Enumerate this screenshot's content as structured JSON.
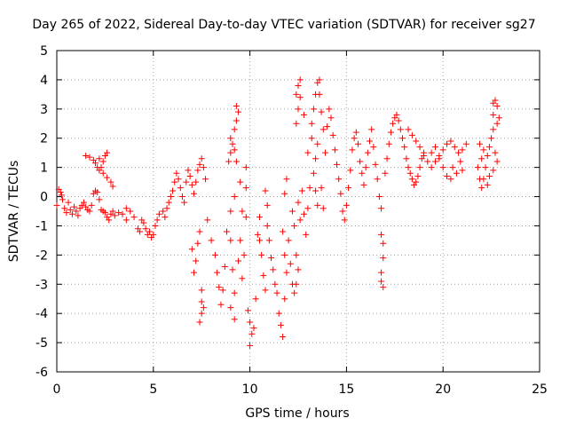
{
  "chart_data": {
    "type": "scatter",
    "title": "Day 265 of 2022, Sidereal Day-to-day VTEC variation (SDTVAR) for receiver sg27",
    "xlabel": "GPS time / hours",
    "ylabel": "SDTVAR / TECUs",
    "xlim": [
      0,
      25
    ],
    "ylim": [
      -6,
      5
    ],
    "xticks": [
      "0",
      "5",
      "10",
      "15",
      "20",
      "25"
    ],
    "yticks": [
      "5",
      "4",
      "3",
      "2",
      "1",
      "0",
      "-1",
      "-2",
      "-3",
      "-4",
      "-5",
      "-6"
    ],
    "marker": "plus",
    "color": "#ff0000",
    "grid": true,
    "series": [
      {
        "name": "SDTVAR",
        "points": [
          [
            0.0,
            -0.3
          ],
          [
            0.1,
            0.25
          ],
          [
            0.2,
            0.15
          ],
          [
            0.25,
            0.05
          ],
          [
            0.3,
            -0.1
          ],
          [
            0.4,
            -0.4
          ],
          [
            0.5,
            -0.55
          ],
          [
            0.6,
            -0.2
          ],
          [
            0.7,
            -0.45
          ],
          [
            0.8,
            -0.6
          ],
          [
            0.9,
            -0.35
          ],
          [
            1.0,
            -0.5
          ],
          [
            1.1,
            -0.65
          ],
          [
            1.2,
            -0.4
          ],
          [
            1.3,
            -0.3
          ],
          [
            1.4,
            -0.2
          ],
          [
            1.5,
            -0.35
          ],
          [
            1.6,
            -0.45
          ],
          [
            1.7,
            -0.5
          ],
          [
            1.8,
            -0.3
          ],
          [
            1.9,
            0.1
          ],
          [
            2.0,
            0.2
          ],
          [
            2.1,
            0.15
          ],
          [
            2.2,
            -0.1
          ],
          [
            2.3,
            -0.45
          ],
          [
            2.4,
            -0.5
          ],
          [
            2.5,
            -0.55
          ],
          [
            2.6,
            -0.7
          ],
          [
            2.7,
            -0.8
          ],
          [
            2.8,
            -0.6
          ],
          [
            2.9,
            -0.5
          ],
          [
            3.0,
            -0.65
          ],
          [
            3.2,
            -0.55
          ],
          [
            3.4,
            -0.6
          ],
          [
            3.6,
            -0.8
          ],
          [
            1.5,
            1.4
          ],
          [
            1.7,
            1.35
          ],
          [
            1.9,
            1.25
          ],
          [
            2.0,
            1.15
          ],
          [
            2.1,
            1.0
          ],
          [
            2.2,
            0.9
          ],
          [
            2.3,
            1.0
          ],
          [
            2.4,
            1.2
          ],
          [
            2.5,
            1.4
          ],
          [
            2.6,
            1.5
          ],
          [
            2.2,
            1.3
          ],
          [
            2.4,
            0.8
          ],
          [
            2.6,
            0.65
          ],
          [
            2.8,
            0.5
          ],
          [
            2.9,
            0.35
          ],
          [
            3.6,
            -0.4
          ],
          [
            3.8,
            -0.5
          ],
          [
            4.0,
            -0.7
          ],
          [
            4.2,
            -1.1
          ],
          [
            4.3,
            -1.2
          ],
          [
            4.4,
            -0.8
          ],
          [
            4.5,
            -0.9
          ],
          [
            4.6,
            -1.1
          ],
          [
            4.7,
            -1.3
          ],
          [
            4.8,
            -1.2
          ],
          [
            4.9,
            -1.4
          ],
          [
            5.0,
            -1.3
          ],
          [
            5.1,
            -1.0
          ],
          [
            5.2,
            -0.8
          ],
          [
            5.3,
            -0.6
          ],
          [
            5.5,
            -0.5
          ],
          [
            5.6,
            -0.7
          ],
          [
            5.7,
            -0.4
          ],
          [
            5.8,
            -0.2
          ],
          [
            5.9,
            0.0
          ],
          [
            6.0,
            0.2
          ],
          [
            6.1,
            0.5
          ],
          [
            6.2,
            0.8
          ],
          [
            6.3,
            0.6
          ],
          [
            6.4,
            0.3
          ],
          [
            6.5,
            0.0
          ],
          [
            6.6,
            -0.2
          ],
          [
            6.7,
            0.5
          ],
          [
            6.8,
            0.9
          ],
          [
            6.9,
            0.7
          ],
          [
            7.0,
            0.4
          ],
          [
            7.1,
            0.1
          ],
          [
            7.2,
            0.5
          ],
          [
            7.3,
            0.9
          ],
          [
            7.4,
            1.1
          ],
          [
            7.5,
            1.3
          ],
          [
            7.6,
            1.0
          ],
          [
            7.7,
            0.6
          ],
          [
            7.4,
            -1.2
          ],
          [
            7.3,
            -1.6
          ],
          [
            7.2,
            -2.2
          ],
          [
            7.1,
            -2.6
          ],
          [
            7.0,
            -1.8
          ],
          [
            7.5,
            -3.2
          ],
          [
            7.5,
            -3.6
          ],
          [
            7.5,
            -4.0
          ],
          [
            7.4,
            -4.3
          ],
          [
            7.6,
            -3.8
          ],
          [
            7.8,
            -0.8
          ],
          [
            8.0,
            -1.5
          ],
          [
            8.2,
            -2.0
          ],
          [
            8.3,
            -2.6
          ],
          [
            8.4,
            -3.1
          ],
          [
            8.5,
            -3.7
          ],
          [
            8.6,
            -3.2
          ],
          [
            8.7,
            -2.4
          ],
          [
            8.8,
            -1.2
          ],
          [
            9.0,
            -0.5
          ],
          [
            9.2,
            0.0
          ],
          [
            9.0,
            -1.5
          ],
          [
            9.1,
            -2.5
          ],
          [
            9.2,
            -3.3
          ],
          [
            9.0,
            -3.8
          ],
          [
            9.2,
            -4.2
          ],
          [
            8.9,
            1.2
          ],
          [
            9.0,
            1.5
          ],
          [
            9.1,
            1.8
          ],
          [
            9.2,
            1.6
          ],
          [
            9.3,
            1.2
          ],
          [
            9.0,
            2.0
          ],
          [
            9.2,
            2.3
          ],
          [
            9.3,
            2.6
          ],
          [
            9.4,
            2.9
          ],
          [
            9.3,
            3.1
          ],
          [
            9.5,
            0.5
          ],
          [
            9.6,
            -0.5
          ],
          [
            9.5,
            -1.5
          ],
          [
            9.4,
            -2.2
          ],
          [
            9.6,
            -2.8
          ],
          [
            9.7,
            -2.0
          ],
          [
            9.8,
            -0.7
          ],
          [
            9.8,
            0.3
          ],
          [
            9.8,
            1.0
          ],
          [
            9.9,
            -3.9
          ],
          [
            10.0,
            -4.3
          ],
          [
            10.1,
            -4.7
          ],
          [
            10.0,
            -5.1
          ],
          [
            10.2,
            -4.5
          ],
          [
            10.3,
            -3.5
          ],
          [
            10.4,
            -1.3
          ],
          [
            10.5,
            -0.7
          ],
          [
            10.5,
            -1.5
          ],
          [
            10.6,
            -2.0
          ],
          [
            10.7,
            -2.7
          ],
          [
            10.8,
            -3.2
          ],
          [
            10.9,
            -1.0
          ],
          [
            10.9,
            -0.3
          ],
          [
            10.8,
            0.2
          ],
          [
            11.0,
            -1.5
          ],
          [
            11.1,
            -2.1
          ],
          [
            11.2,
            -2.5
          ],
          [
            11.3,
            -3.0
          ],
          [
            11.4,
            -3.3
          ],
          [
            11.5,
            -4.0
          ],
          [
            11.6,
            -4.4
          ],
          [
            11.7,
            -4.8
          ],
          [
            11.8,
            -3.5
          ],
          [
            11.9,
            -2.6
          ],
          [
            11.8,
            -2.0
          ],
          [
            11.7,
            -1.2
          ],
          [
            11.8,
            0.1
          ],
          [
            11.9,
            0.6
          ],
          [
            12.0,
            -1.5
          ],
          [
            12.1,
            -2.3
          ],
          [
            12.2,
            -3.0
          ],
          [
            12.3,
            -3.3
          ],
          [
            12.4,
            -3.0
          ],
          [
            12.5,
            -2.5
          ],
          [
            12.4,
            -2.0
          ],
          [
            12.3,
            -1.0
          ],
          [
            12.2,
            -0.5
          ],
          [
            12.5,
            -0.2
          ],
          [
            12.6,
            -0.8
          ],
          [
            12.7,
            0.2
          ],
          [
            12.8,
            -0.6
          ],
          [
            12.9,
            -1.3
          ],
          [
            13.0,
            -0.4
          ],
          [
            13.1,
            0.3
          ],
          [
            12.4,
            2.5
          ],
          [
            12.5,
            3.0
          ],
          [
            12.4,
            3.5
          ],
          [
            12.5,
            3.8
          ],
          [
            12.6,
            4.0
          ],
          [
            12.6,
            3.4
          ],
          [
            12.8,
            2.8
          ],
          [
            13.0,
            1.5
          ],
          [
            13.2,
            2.0
          ],
          [
            13.2,
            2.5
          ],
          [
            13.3,
            3.0
          ],
          [
            13.4,
            3.5
          ],
          [
            13.5,
            3.9
          ],
          [
            13.6,
            4.0
          ],
          [
            13.6,
            3.5
          ],
          [
            13.7,
            2.9
          ],
          [
            13.8,
            2.3
          ],
          [
            13.5,
            1.8
          ],
          [
            13.4,
            1.3
          ],
          [
            13.3,
            0.8
          ],
          [
            13.4,
            0.2
          ],
          [
            13.5,
            -0.3
          ],
          [
            13.7,
            0.3
          ],
          [
            13.8,
            -0.4
          ],
          [
            13.9,
            1.5
          ],
          [
            14.0,
            2.4
          ],
          [
            14.1,
            3.0
          ],
          [
            14.2,
            2.7
          ],
          [
            14.3,
            2.1
          ],
          [
            14.4,
            1.6
          ],
          [
            14.5,
            1.1
          ],
          [
            14.6,
            0.6
          ],
          [
            14.7,
            0.1
          ],
          [
            14.8,
            -0.5
          ],
          [
            14.9,
            -0.8
          ],
          [
            15.0,
            -0.3
          ],
          [
            15.1,
            0.3
          ],
          [
            15.2,
            0.9
          ],
          [
            15.3,
            1.6
          ],
          [
            15.4,
            2.0
          ],
          [
            15.5,
            2.2
          ],
          [
            15.6,
            1.8
          ],
          [
            15.7,
            1.2
          ],
          [
            15.8,
            0.8
          ],
          [
            15.9,
            0.4
          ],
          [
            16.0,
            1.0
          ],
          [
            16.1,
            1.5
          ],
          [
            16.2,
            1.9
          ],
          [
            16.3,
            2.3
          ],
          [
            16.4,
            1.7
          ],
          [
            16.5,
            1.1
          ],
          [
            16.6,
            0.6
          ],
          [
            16.7,
            0.0
          ],
          [
            16.8,
            -0.4
          ],
          [
            16.8,
            -1.3
          ],
          [
            16.9,
            -1.6
          ],
          [
            16.9,
            -2.1
          ],
          [
            16.8,
            -2.6
          ],
          [
            16.8,
            -2.9
          ],
          [
            16.9,
            -3.1
          ],
          [
            17.0,
            0.8
          ],
          [
            17.1,
            1.3
          ],
          [
            17.2,
            1.8
          ],
          [
            17.3,
            2.2
          ],
          [
            17.4,
            2.5
          ],
          [
            17.5,
            2.7
          ],
          [
            17.6,
            2.8
          ],
          [
            17.7,
            2.6
          ],
          [
            17.8,
            2.3
          ],
          [
            17.9,
            2.0
          ],
          [
            18.0,
            1.7
          ],
          [
            18.1,
            1.3
          ],
          [
            18.2,
            1.0
          ],
          [
            18.3,
            0.8
          ],
          [
            18.4,
            0.6
          ],
          [
            18.5,
            0.4
          ],
          [
            18.6,
            0.5
          ],
          [
            18.7,
            0.7
          ],
          [
            18.8,
            1.0
          ],
          [
            18.9,
            1.3
          ],
          [
            19.0,
            1.5
          ],
          [
            18.2,
            2.3
          ],
          [
            18.4,
            2.1
          ],
          [
            18.6,
            1.9
          ],
          [
            18.8,
            1.7
          ],
          [
            19.0,
            1.4
          ],
          [
            19.2,
            1.2
          ],
          [
            19.4,
            1.0
          ],
          [
            19.6,
            1.2
          ],
          [
            19.8,
            1.4
          ],
          [
            20.0,
            1.6
          ],
          [
            20.2,
            1.8
          ],
          [
            20.4,
            1.9
          ],
          [
            20.6,
            1.7
          ],
          [
            20.8,
            1.5
          ],
          [
            20.9,
            1.2
          ],
          [
            21.0,
            0.9
          ],
          [
            20.5,
            1.0
          ],
          [
            20.7,
            0.8
          ],
          [
            21.0,
            1.6
          ],
          [
            21.2,
            1.8
          ],
          [
            19.4,
            1.5
          ],
          [
            19.6,
            1.7
          ],
          [
            19.8,
            1.3
          ],
          [
            20.0,
            1.0
          ],
          [
            20.2,
            0.7
          ],
          [
            20.4,
            0.6
          ],
          [
            21.8,
            1.0
          ],
          [
            21.9,
            0.6
          ],
          [
            22.0,
            0.3
          ],
          [
            22.1,
            0.6
          ],
          [
            22.2,
            1.0
          ],
          [
            22.3,
            1.4
          ],
          [
            22.4,
            1.7
          ],
          [
            22.5,
            2.0
          ],
          [
            22.6,
            2.3
          ],
          [
            22.6,
            2.8
          ],
          [
            22.6,
            3.2
          ],
          [
            22.7,
            3.3
          ],
          [
            22.8,
            3.1
          ],
          [
            22.9,
            2.7
          ],
          [
            22.8,
            2.5
          ],
          [
            22.7,
            1.5
          ],
          [
            22.8,
            1.2
          ],
          [
            22.6,
            0.9
          ],
          [
            22.4,
            0.7
          ],
          [
            22.3,
            0.4
          ],
          [
            22.1,
            1.6
          ],
          [
            22.0,
            1.3
          ],
          [
            21.9,
            1.8
          ]
        ]
      }
    ]
  }
}
